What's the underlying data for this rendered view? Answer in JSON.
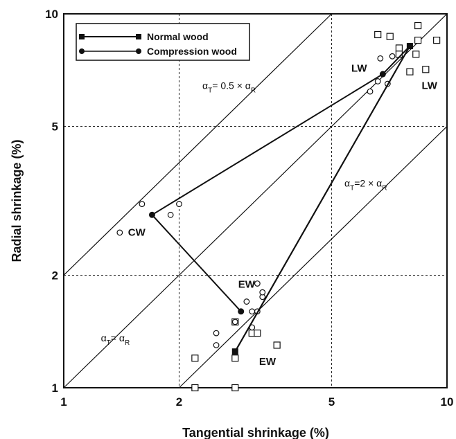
{
  "chart_data": {
    "type": "scatter",
    "x_scale": "log",
    "y_scale": "log",
    "xlim": [
      1,
      10
    ],
    "ylim": [
      1,
      10
    ],
    "xlabel": "Tangential shrinkage (%)",
    "ylabel": "Radial shrinkage (%)",
    "x_ticks": [
      1,
      2,
      5,
      10
    ],
    "y_ticks": [
      1,
      2,
      5,
      10
    ],
    "x_tick_labels": [
      "1",
      "2",
      "5",
      "10"
    ],
    "y_tick_labels": [
      "1",
      "2",
      "5",
      "10"
    ],
    "grid": "dashed",
    "legend_position": "top-left",
    "legend": [
      {
        "label": "Normal wood",
        "marker": "filled-square"
      },
      {
        "label": "Compression wood",
        "marker": "filled-circle"
      }
    ],
    "series": [
      {
        "name": "Normal wood",
        "line": [
          [
            2.8,
            1.25
          ],
          [
            8.0,
            8.2
          ]
        ],
        "line_labels": [
          "EW",
          "LW"
        ],
        "scatter_marker": "open-square",
        "points": [
          [
            2.2,
            1.2
          ],
          [
            2.2,
            1.0
          ],
          [
            2.8,
            1.2
          ],
          [
            2.8,
            1.0
          ],
          [
            2.8,
            1.5
          ],
          [
            3.1,
            1.4
          ],
          [
            3.2,
            1.4
          ],
          [
            3.6,
            1.3
          ],
          [
            6.6,
            8.8
          ],
          [
            7.1,
            8.7
          ],
          [
            7.5,
            8.1
          ],
          [
            7.5,
            7.8
          ],
          [
            8.4,
            9.3
          ],
          [
            8.4,
            8.5
          ],
          [
            8.3,
            7.8
          ],
          [
            9.4,
            8.5
          ],
          [
            8.0,
            7.0
          ],
          [
            8.8,
            7.1
          ]
        ]
      },
      {
        "name": "Compression wood",
        "line": [
          [
            2.9,
            1.6
          ],
          [
            1.7,
            2.9
          ],
          [
            6.8,
            6.9
          ],
          [
            8.0,
            8.2
          ]
        ],
        "line_labels": [
          "EW",
          "CW",
          "LW"
        ],
        "scatter_marker": "open-circle",
        "points": [
          [
            1.4,
            2.6
          ],
          [
            1.6,
            3.1
          ],
          [
            1.9,
            2.9
          ],
          [
            2.0,
            3.1
          ],
          [
            2.5,
            1.4
          ],
          [
            2.5,
            1.3
          ],
          [
            2.8,
            1.5
          ],
          [
            3.0,
            1.7
          ],
          [
            3.1,
            1.6
          ],
          [
            3.2,
            1.6
          ],
          [
            3.1,
            1.45
          ],
          [
            3.2,
            1.9
          ],
          [
            3.3,
            1.75
          ],
          [
            3.3,
            1.8
          ],
          [
            6.3,
            6.2
          ],
          [
            6.6,
            6.6
          ],
          [
            7.0,
            6.5
          ],
          [
            6.7,
            7.6
          ],
          [
            7.2,
            7.7
          ]
        ]
      }
    ],
    "reference_lines": [
      {
        "slope_ratio": 0.5,
        "label": "αT= 0.5 × αR"
      },
      {
        "slope_ratio": 1,
        "label": "αT= αR"
      },
      {
        "slope_ratio": 2,
        "label": "αT=2 × αR"
      }
    ],
    "point_labels": [
      {
        "text": "LW",
        "at": [
          5.9,
          7.0
        ]
      },
      {
        "text": "LW",
        "at": [
          9.0,
          6.3
        ]
      },
      {
        "text": "CW",
        "at": [
          1.55,
          2.55
        ]
      },
      {
        "text": "EW",
        "at": [
          3.0,
          1.85
        ]
      },
      {
        "text": "EW",
        "at": [
          3.4,
          1.15
        ]
      }
    ],
    "annotation_labels": [
      {
        "text": "αT= 0.5 × αR",
        "at": [
          2.3,
          6.3
        ]
      },
      {
        "text": "αT= αR",
        "at": [
          1.25,
          1.33
        ]
      },
      {
        "text": "αT=2 × αR",
        "at": [
          5.4,
          3.45
        ]
      }
    ]
  }
}
